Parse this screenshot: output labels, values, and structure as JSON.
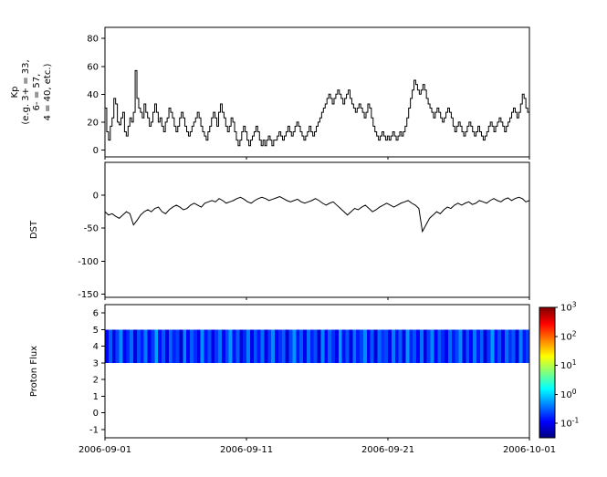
{
  "figure": {
    "background": "#ffffff",
    "axis_color": "#000000",
    "trace_color": "#000000"
  },
  "axes": {
    "x_tick_labels": [
      "2006-09-01",
      "2006-09-11",
      "2006-09-21",
      "2006-10-01"
    ],
    "x_tick_positions_days": [
      0,
      10,
      20,
      30
    ],
    "x_range_days": 30
  },
  "chart_data": [
    {
      "type": "line",
      "subtype": "step",
      "ylabel_lines": [
        "Kp",
        "(e.g. 3+ = 33,",
        "6- = 57,",
        "4 = 40, etc.)"
      ],
      "ylim": [
        -5,
        88
      ],
      "yticks": [
        0,
        20,
        40,
        60,
        80
      ],
      "x_start": "2006-09-01",
      "x_end": "2006-10-01",
      "points_per_day": 8,
      "values": [
        30,
        13,
        7,
        17,
        23,
        37,
        33,
        20,
        18,
        23,
        27,
        13,
        10,
        17,
        23,
        20,
        27,
        57,
        37,
        30,
        27,
        23,
        33,
        27,
        23,
        17,
        20,
        27,
        33,
        27,
        20,
        23,
        17,
        13,
        20,
        23,
        30,
        27,
        23,
        17,
        13,
        17,
        23,
        27,
        23,
        17,
        13,
        10,
        13,
        17,
        20,
        23,
        27,
        23,
        17,
        13,
        10,
        7,
        13,
        17,
        23,
        27,
        23,
        17,
        27,
        33,
        27,
        23,
        17,
        13,
        17,
        23,
        20,
        13,
        7,
        3,
        7,
        13,
        17,
        13,
        7,
        3,
        7,
        10,
        13,
        17,
        13,
        7,
        3,
        7,
        3,
        7,
        10,
        7,
        3,
        7,
        7,
        10,
        13,
        10,
        7,
        10,
        13,
        17,
        13,
        10,
        13,
        17,
        20,
        17,
        13,
        10,
        7,
        10,
        13,
        17,
        13,
        10,
        13,
        17,
        20,
        23,
        27,
        30,
        33,
        37,
        40,
        37,
        33,
        37,
        40,
        43,
        40,
        37,
        33,
        37,
        40,
        43,
        37,
        33,
        30,
        27,
        30,
        33,
        30,
        27,
        23,
        27,
        33,
        30,
        23,
        17,
        13,
        10,
        7,
        10,
        13,
        10,
        7,
        10,
        7,
        10,
        13,
        10,
        7,
        10,
        13,
        10,
        13,
        17,
        23,
        30,
        37,
        43,
        50,
        47,
        43,
        40,
        43,
        47,
        43,
        37,
        33,
        30,
        27,
        23,
        27,
        30,
        27,
        23,
        20,
        23,
        27,
        30,
        27,
        23,
        17,
        13,
        17,
        20,
        17,
        13,
        10,
        13,
        17,
        20,
        17,
        13,
        10,
        13,
        17,
        13,
        10,
        7,
        10,
        13,
        17,
        20,
        17,
        13,
        17,
        20,
        23,
        20,
        17,
        13,
        17,
        20,
        23,
        27,
        30,
        27,
        23,
        27,
        33,
        40,
        37,
        30,
        27,
        23
      ]
    },
    {
      "type": "line",
      "ylabel": "DST",
      "ylim": [
        -155,
        50
      ],
      "yticks": [
        0,
        -50,
        -100,
        -150
      ],
      "x_start": "2006-09-01",
      "x_end": "2006-10-01",
      "points_per_day": 4,
      "values": [
        -25,
        -30,
        -28,
        -32,
        -35,
        -30,
        -25,
        -28,
        -45,
        -38,
        -30,
        -25,
        -22,
        -25,
        -20,
        -18,
        -25,
        -28,
        -22,
        -18,
        -15,
        -18,
        -22,
        -20,
        -15,
        -12,
        -15,
        -18,
        -12,
        -10,
        -8,
        -10,
        -5,
        -8,
        -12,
        -10,
        -8,
        -5,
        -3,
        -6,
        -10,
        -12,
        -8,
        -5,
        -3,
        -5,
        -8,
        -6,
        -4,
        -2,
        -5,
        -8,
        -10,
        -8,
        -6,
        -10,
        -12,
        -10,
        -8,
        -5,
        -8,
        -12,
        -15,
        -12,
        -10,
        -15,
        -20,
        -25,
        -30,
        -25,
        -20,
        -22,
        -18,
        -15,
        -20,
        -25,
        -22,
        -18,
        -15,
        -12,
        -15,
        -18,
        -15,
        -12,
        -10,
        -8,
        -12,
        -15,
        -20,
        -55,
        -45,
        -35,
        -30,
        -25,
        -28,
        -22,
        -18,
        -20,
        -15,
        -12,
        -15,
        -12,
        -10,
        -14,
        -12,
        -8,
        -10,
        -12,
        -8,
        -5,
        -8,
        -10,
        -6,
        -4,
        -8,
        -5,
        -3,
        -5,
        -10,
        -8
      ]
    },
    {
      "type": "heatmap",
      "ylabel": "Proton Flux",
      "ylim": [
        -1.5,
        6.5
      ],
      "yticks": [
        6,
        5,
        4,
        3,
        2,
        1,
        0,
        -1
      ],
      "x_start": "2006-09-01",
      "x_end": "2006-10-01",
      "band_y_top": 5.0,
      "band_y_bottom": 3.0,
      "column_values": [
        0.12,
        0.3,
        0.09,
        0.22,
        0.5,
        0.11,
        0.18,
        0.35,
        0.08,
        0.25,
        0.15,
        0.4,
        0.1,
        0.2,
        0.6,
        0.13,
        0.28,
        0.09,
        0.33,
        0.16,
        0.22,
        0.07,
        0.45,
        0.12,
        0.3,
        0.18,
        0.1,
        0.5,
        0.14,
        0.26,
        0.09,
        0.2,
        0.38,
        0.11,
        0.24,
        0.55,
        0.13,
        0.3,
        0.08,
        0.17,
        0.42,
        0.1,
        0.27,
        0.15,
        0.35,
        0.09,
        0.21,
        0.48,
        0.12,
        0.19,
        0.31,
        0.08,
        0.23,
        0.52,
        0.14,
        0.29,
        0.1,
        0.37,
        0.16,
        0.25,
        0.07,
        0.44,
        0.12,
        0.32,
        0.18,
        0.1,
        0.58,
        0.13,
        0.27,
        0.09,
        0.36,
        0.15,
        0.22,
        0.47,
        0.11,
        0.28,
        0.08,
        0.33,
        0.19,
        0.24,
        0.1,
        0.41,
        0.13,
        0.3,
        0.09,
        0.53,
        0.16,
        0.26,
        0.12,
        0.38,
        0.08,
        0.21,
        0.46,
        0.11,
        0.29,
        0.17,
        0.1,
        0.34,
        0.14,
        0.23,
        0.49,
        0.09,
        0.27,
        0.12,
        0.4,
        0.15,
        0.31,
        0.08,
        0.2,
        0.56,
        0.13,
        0.25,
        0.1,
        0.36,
        0.18,
        0.28,
        0.09,
        0.43,
        0.14,
        0.22
      ],
      "colorbar": {
        "scale": "log",
        "tick_exponents": [
          3,
          2,
          1,
          0,
          -1
        ],
        "exponent_range": [
          -1.5,
          3
        ],
        "colormap": "jet",
        "colormap_stops": [
          {
            "pos": 0.0,
            "color": "#00007f"
          },
          {
            "pos": 0.125,
            "color": "#0000ff"
          },
          {
            "pos": 0.375,
            "color": "#00ffff"
          },
          {
            "pos": 0.625,
            "color": "#ffff00"
          },
          {
            "pos": 0.875,
            "color": "#ff0000"
          },
          {
            "pos": 1.0,
            "color": "#7f0000"
          }
        ]
      }
    }
  ]
}
